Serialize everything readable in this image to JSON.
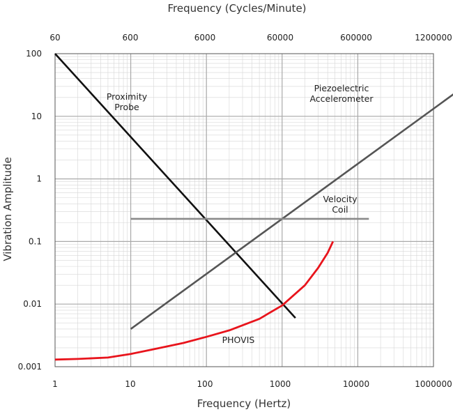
{
  "chart_data": {
    "type": "line",
    "title": "",
    "xlabel": "Frequency (Hertz)",
    "x2label": "Frequency (Cycles/Minute)",
    "ylabel": "Vibration Amplitude",
    "x_scale": "log",
    "y_scale": "log",
    "grid": true,
    "x_tick_labels": [
      "1",
      "10",
      "100",
      "1000",
      "10000",
      "1000000"
    ],
    "x2_tick_labels": [
      "60",
      "600",
      "6000",
      "60000",
      "600000",
      "1200000"
    ],
    "y_tick_labels": [
      "100",
      "10",
      "1",
      "0.1",
      "0.01",
      "0.001"
    ],
    "series": [
      {
        "name": "Proximity Probe",
        "label_lines": [
          "Proximity",
          "Probe"
        ],
        "color": "#111111",
        "x": [
          1,
          1500
        ],
        "y": [
          100,
          0.006
        ]
      },
      {
        "name": "Piezoelectric Accelerometer",
        "label_lines": [
          "Piezoelectric",
          "Accelerometer"
        ],
        "color": "#555555",
        "x": [
          10,
          1000000
        ],
        "y": [
          0.004,
          100
        ]
      },
      {
        "name": "Velocity Coil",
        "label_lines": [
          "Velocity",
          "Coil"
        ],
        "color": "#8a8a8a",
        "x": [
          10,
          14000
        ],
        "y": [
          0.23,
          0.23
        ]
      },
      {
        "name": "PHOVIS",
        "label_lines": [
          "PHOVIS"
        ],
        "color": "#e8141c",
        "x": [
          1,
          2,
          5,
          10,
          20,
          50,
          100,
          200,
          500,
          1000,
          2000,
          3000,
          4000,
          4700
        ],
        "y": [
          0.0013,
          0.00133,
          0.0014,
          0.0016,
          0.0019,
          0.0024,
          0.003,
          0.0038,
          0.0058,
          0.0095,
          0.02,
          0.038,
          0.066,
          0.1
        ]
      }
    ]
  }
}
